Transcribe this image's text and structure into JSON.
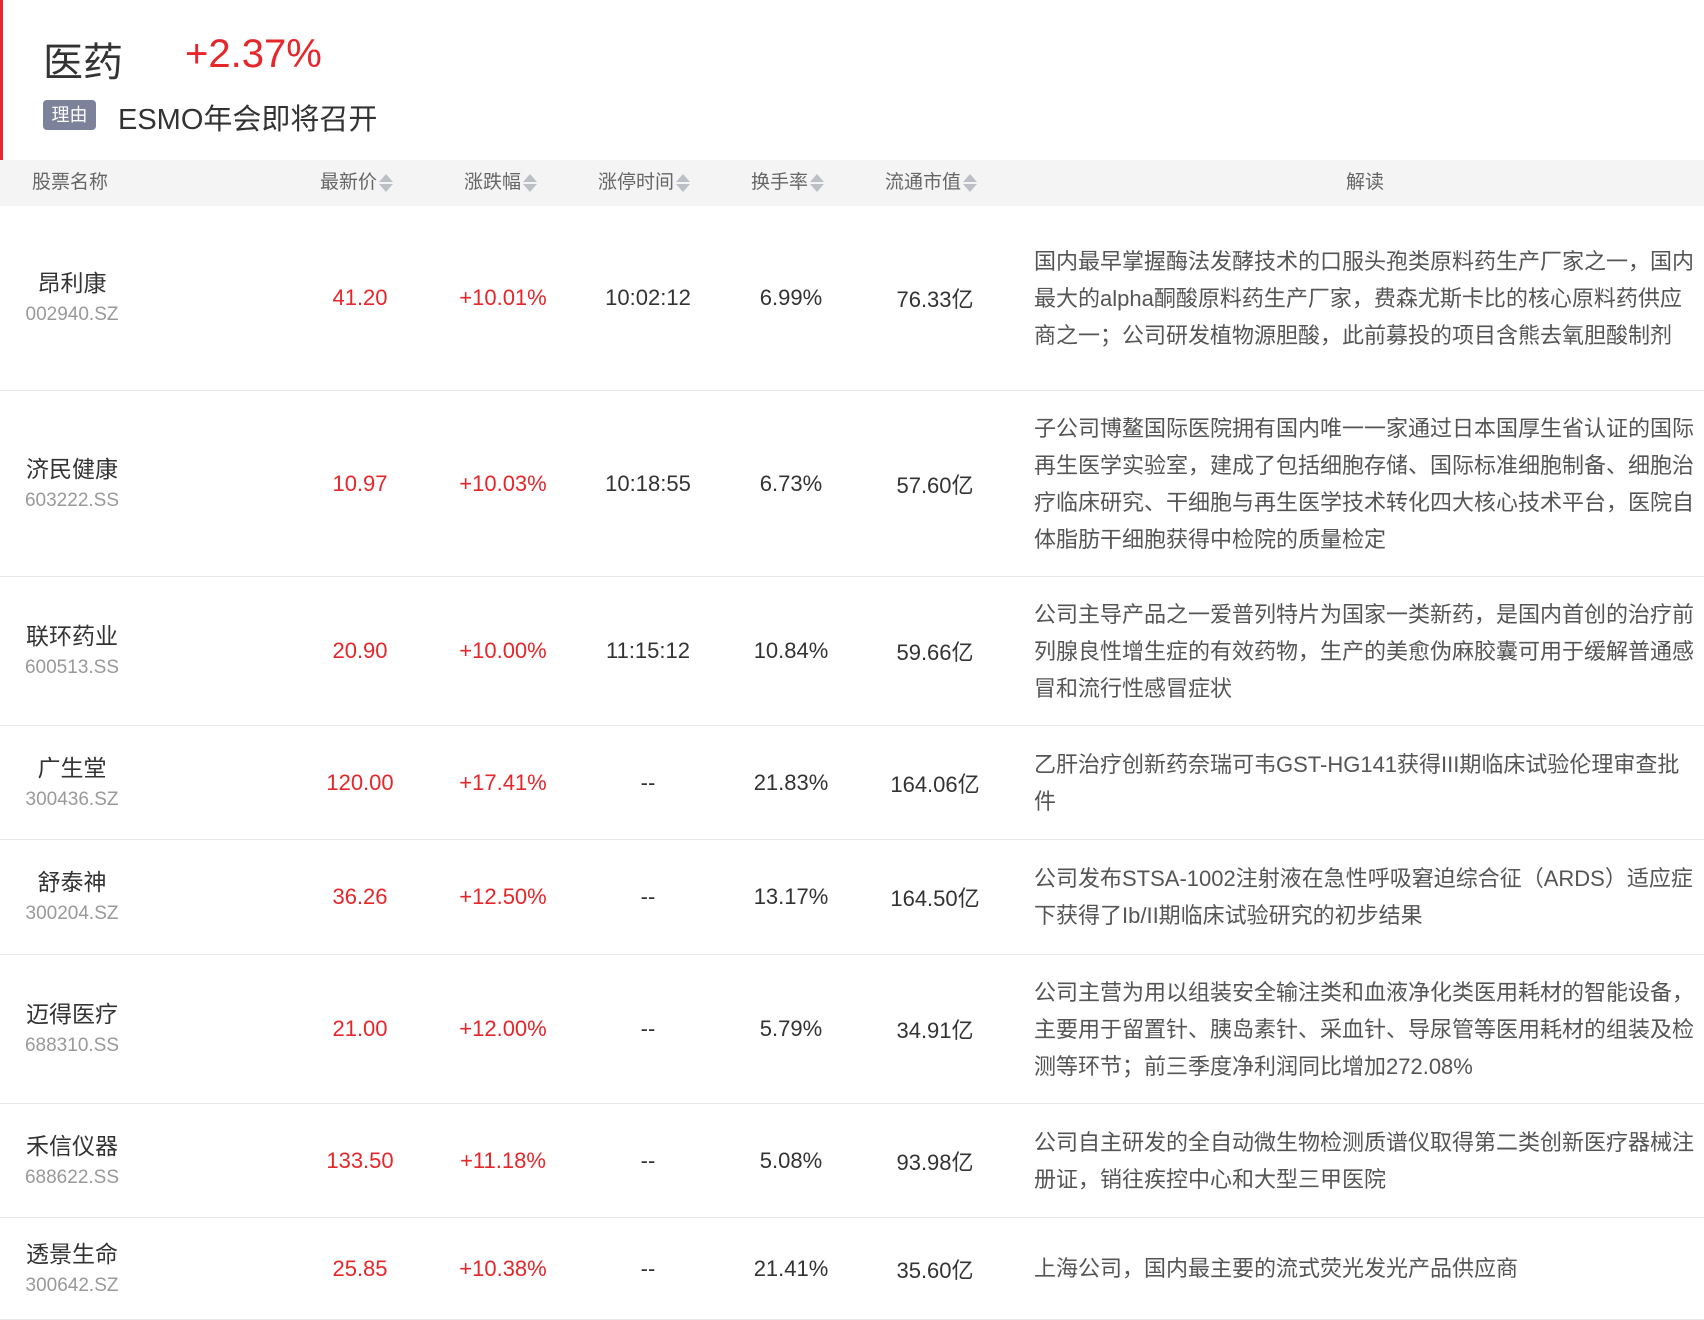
{
  "header": {
    "sector": "医药",
    "change": "+2.37%",
    "reason_tag": "理由",
    "reason": "ESMO年会即将召开"
  },
  "columns": {
    "name": "股票名称",
    "price": "最新价",
    "change": "涨跌幅",
    "limit_time": "涨停时间",
    "turnover": "换手率",
    "float_cap": "流通市值",
    "comment": "解读"
  },
  "colors": {
    "up": "#e5262a",
    "tag_bg": "#7b8299"
  },
  "rows": [
    {
      "name": "昂利康",
      "code": "002940.SZ",
      "price": "41.20",
      "change": "+10.01%",
      "time": "10:02:12",
      "turnover": "6.99%",
      "cap": "76.33亿",
      "desc": "国内最早掌握酶法发酵技术的口服头孢类原料药生产厂家之一，国内最大的alpha酮酸原料药生产厂家，费森尤斯卡比的核心原料药供应商之一；公司研发植物源胆酸，此前募投的项目含熊去氧胆酸制剂"
    },
    {
      "name": "济民健康",
      "code": "603222.SS",
      "price": "10.97",
      "change": "+10.03%",
      "time": "10:18:55",
      "turnover": "6.73%",
      "cap": "57.60亿",
      "desc": "子公司博鳌国际医院拥有国内唯一一家通过日本国厚生省认证的国际再生医学实验室，建成了包括细胞存储、国际标准细胞制备、细胞治疗临床研究、干细胞与再生医学技术转化四大核心技术平台，医院自体脂肪干细胞获得中检院的质量检定"
    },
    {
      "name": "联环药业",
      "code": "600513.SS",
      "price": "20.90",
      "change": "+10.00%",
      "time": "11:15:12",
      "turnover": "10.84%",
      "cap": "59.66亿",
      "desc": "公司主导产品之一爱普列特片为国家一类新药，是国内首创的治疗前列腺良性增生症的有效药物，生产的美愈伪麻胶囊可用于缓解普通感冒和流行性感冒症状"
    },
    {
      "name": "广生堂",
      "code": "300436.SZ",
      "price": "120.00",
      "change": "+17.41%",
      "time": "--",
      "turnover": "21.83%",
      "cap": "164.06亿",
      "desc": "乙肝治疗创新药奈瑞可韦GST-HG141获得III期临床试验伦理审查批件"
    },
    {
      "name": "舒泰神",
      "code": "300204.SZ",
      "price": "36.26",
      "change": "+12.50%",
      "time": "--",
      "turnover": "13.17%",
      "cap": "164.50亿",
      "desc": "公司发布STSA-1002注射液在急性呼吸窘迫综合征（ARDS）适应症下获得了Ib/II期临床试验研究的初步结果"
    },
    {
      "name": "迈得医疗",
      "code": "688310.SS",
      "price": "21.00",
      "change": "+12.00%",
      "time": "--",
      "turnover": "5.79%",
      "cap": "34.91亿",
      "desc": "公司主营为用以组装安全输注类和血液净化类医用耗材的智能设备，主要用于留置针、胰岛素针、采血针、导尿管等医用耗材的组装及检测等环节；前三季度净利润同比增加272.08%"
    },
    {
      "name": "禾信仪器",
      "code": "688622.SS",
      "price": "133.50",
      "change": "+11.18%",
      "time": "--",
      "turnover": "5.08%",
      "cap": "93.98亿",
      "desc": "公司自主研发的全自动微生物检测质谱仪取得第二类创新医疗器械注册证，销往疾控中心和大型三甲医院"
    },
    {
      "name": "透景生命",
      "code": "300642.SZ",
      "price": "25.85",
      "change": "+10.38%",
      "time": "--",
      "turnover": "21.41%",
      "cap": "35.60亿",
      "desc": "上海公司，国内最主要的流式荧光发光产品供应商"
    }
  ]
}
